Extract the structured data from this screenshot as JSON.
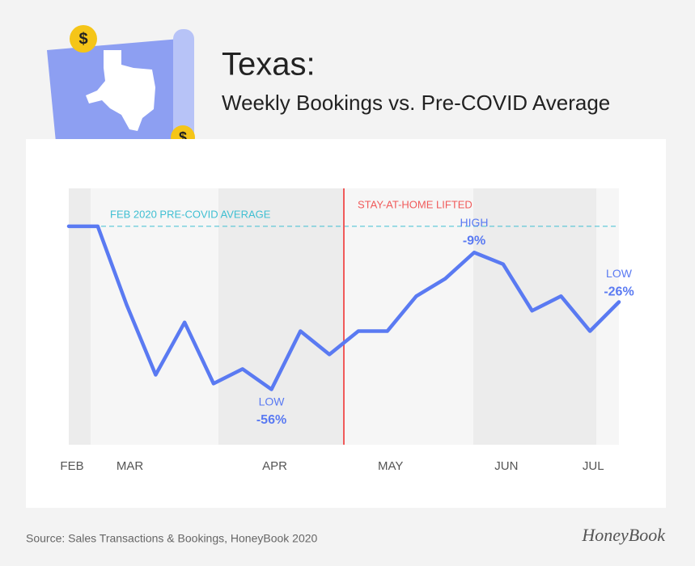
{
  "chart_data": {
    "type": "line",
    "title": "Texas:",
    "subtitle": "Weekly Bookings vs. Pre-COVID Average",
    "categories": [
      "FEB",
      null,
      "MAR",
      null,
      null,
      null,
      null,
      "APR",
      null,
      null,
      null,
      "MAY",
      null,
      null,
      null,
      "JUN",
      null,
      null,
      "JUL",
      null
    ],
    "series": [
      {
        "name": "Weekly Bookings",
        "color": "#5a7af2",
        "values": [
          0,
          0,
          -27,
          -51,
          -33,
          -54,
          -49,
          -56,
          -36,
          -44,
          -36,
          -36,
          -24,
          -18,
          -9,
          -13,
          -29,
          -24,
          -36,
          -26
        ],
        "value_labels": [
          null,
          null,
          null,
          null,
          null,
          null,
          null,
          "-56%",
          null,
          null,
          null,
          null,
          null,
          null,
          "-9%",
          null,
          null,
          null,
          null,
          "-26%"
        ],
        "point_labels": [
          null,
          null,
          null,
          null,
          null,
          null,
          null,
          "LOW",
          null,
          null,
          null,
          null,
          null,
          null,
          "HIGH",
          null,
          null,
          null,
          null,
          "LOW"
        ]
      }
    ],
    "ylim": [
      -75,
      13
    ],
    "reference_line": {
      "value": 0,
      "label": "FEB 2020 PRE-COVID AVERAGE",
      "color": "#3fbfd2"
    },
    "event_line": {
      "label": "STAY-AT-HOME LIFTED",
      "color": "#f05a5a"
    },
    "source": "Source: Sales Transactions & Bookings, HoneyBook 2020",
    "brand": "HoneyBook",
    "icon_symbol": "$"
  }
}
